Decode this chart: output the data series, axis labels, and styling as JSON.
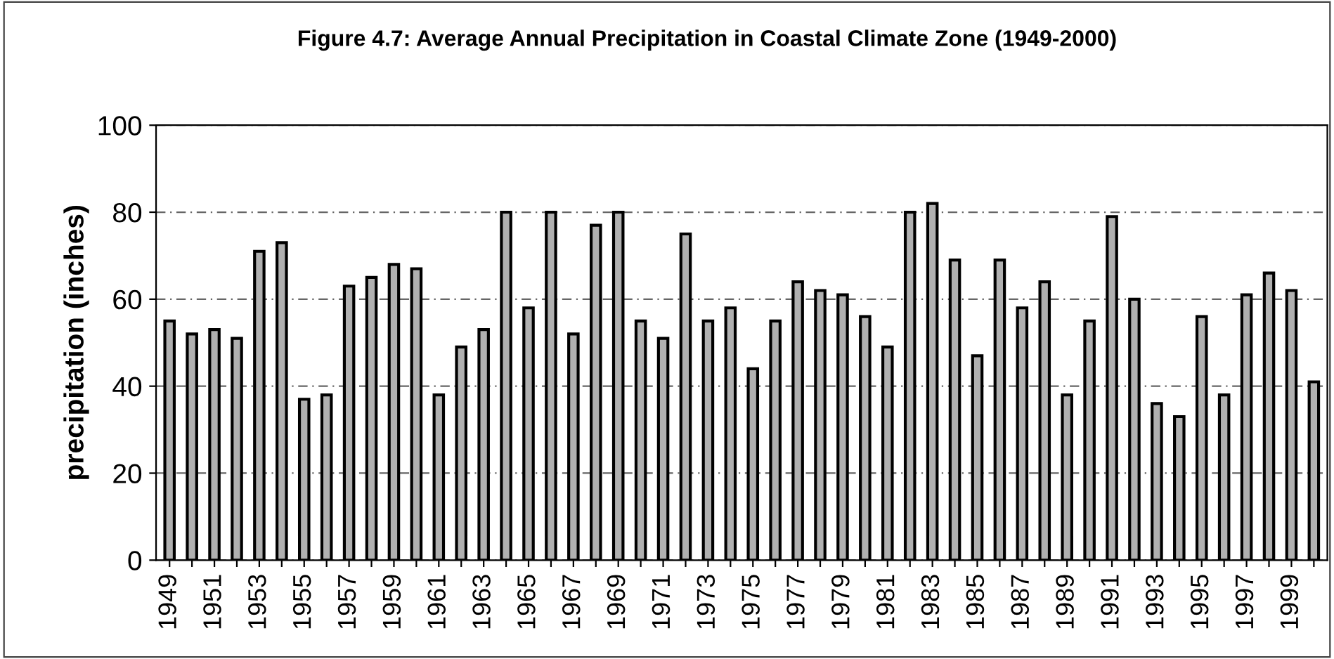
{
  "chart_data": {
    "type": "bar",
    "title": "Figure 4.7: Average Annual Precipitation in Coastal Climate Zone (1949-2000)",
    "ylabel": "precipitation (inches)",
    "categories": [
      "1949",
      null,
      "1951",
      null,
      "1953",
      null,
      "1955",
      null,
      "1957",
      null,
      "1959",
      null,
      "1961",
      null,
      "1963",
      null,
      "1965",
      null,
      "1967",
      null,
      "1969",
      null,
      "1971",
      null,
      "1973",
      null,
      "1975",
      null,
      "1977",
      null,
      "1979",
      null,
      "1981",
      null,
      "1983",
      null,
      "1985",
      null,
      "1987",
      null,
      "1989",
      null,
      "1991",
      null,
      "1993",
      null,
      "1995",
      null,
      "1997",
      null,
      "1999",
      null
    ],
    "values": [
      55,
      52,
      53,
      51,
      71,
      73,
      37,
      38,
      63,
      65,
      68,
      67,
      38,
      49,
      53,
      80,
      58,
      80,
      52,
      77,
      80,
      55,
      51,
      75,
      55,
      58,
      44,
      55,
      64,
      62,
      61,
      56,
      49,
      80,
      82,
      69,
      47,
      69,
      58,
      64,
      38,
      55,
      79,
      60,
      36,
      33,
      56,
      38,
      61,
      66,
      62,
      41
    ],
    "color": "#b0b0b0",
    "ylim": [
      0,
      100
    ],
    "yticks": [
      0,
      20,
      40,
      60,
      80,
      100
    ],
    "grid": "y",
    "legend": false
  }
}
